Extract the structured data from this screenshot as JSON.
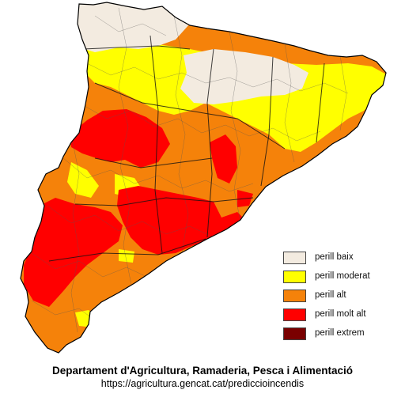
{
  "legend": {
    "items": [
      {
        "label": "perill baix",
        "color": "#f3ebe0"
      },
      {
        "label": "perill moderat",
        "color": "#ffff00"
      },
      {
        "label": "perill alt",
        "color": "#f5820a"
      },
      {
        "label": "perill molt alt",
        "color": "#ff0000"
      },
      {
        "label": "perill extrem",
        "color": "#7a0000"
      }
    ]
  },
  "footer": {
    "title": "Departament d'Agricultura, Ramaderia, Pesca i Alimentació",
    "url": "https://agricultura.gencat.cat/prediccioincendis"
  },
  "region_levels": {
    "north_pyrenees": "perill baix",
    "north_central": "perill moderat",
    "northeast": "perill moderat",
    "interior_west": "perill molt alt",
    "south_interior": "perill molt alt",
    "coast_and_center": "perill alt",
    "delta_south": "perill alt"
  }
}
